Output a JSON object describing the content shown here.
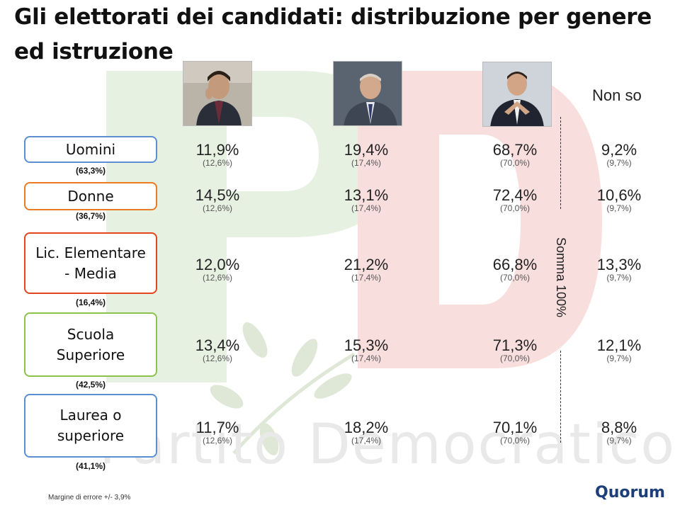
{
  "title": "Gli elettorati dei candidati: distribuzione per genere ed istruzione",
  "watermark_text": "Partito Democratico",
  "columns": {
    "candidates": [
      {
        "photo_icon": "candidate-1-photo"
      },
      {
        "photo_icon": "candidate-2-photo"
      },
      {
        "photo_icon": "candidate-3-photo"
      }
    ],
    "non_so": "Non so"
  },
  "rows": [
    {
      "label": "Uomini",
      "share": "(63,3%)",
      "color": "#5b8fd0",
      "values": [
        "11,9%",
        "19,4%",
        "68,7%",
        "9,2%"
      ]
    },
    {
      "label": "Donne",
      "share": "(36,7%)",
      "color": "#ea7a24",
      "values": [
        "14,5%",
        "13,1%",
        "72,4%",
        "10,6%"
      ]
    },
    {
      "label": "Lic. Elementare - Media",
      "share": "(16,4%)",
      "color": "#e2461c",
      "values": [
        "12,0%",
        "21,2%",
        "66,8%",
        "13,3%"
      ]
    },
    {
      "label": "Scuola Superiore",
      "share": "(42,5%)",
      "color": "#8bc34a",
      "values": [
        "13,4%",
        "15,3%",
        "71,3%",
        "12,1%"
      ]
    },
    {
      "label": "Laurea o superiore",
      "share": "(41,1%)",
      "color": "#5b8fd0",
      "values": [
        "11,7%",
        "18,2%",
        "70,1%",
        "8,8%"
      ]
    }
  ],
  "reference_values": [
    "(12,6%)",
    "(17,4%)",
    "(70,0%)",
    "(9,7%)"
  ],
  "somma_label": "Somma 100%",
  "footnote": "Margine di errore +/- 3,9%",
  "logo": "Quorum"
}
